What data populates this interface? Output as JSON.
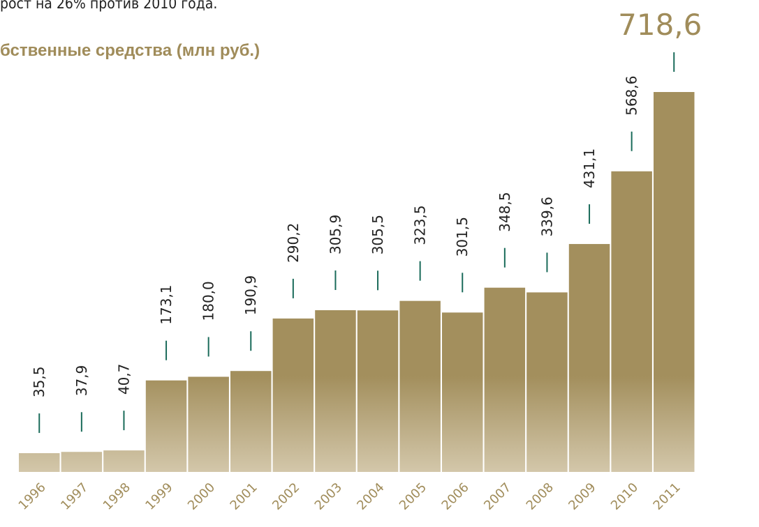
{
  "chart_data": {
    "type": "bar",
    "subtitle": "рост на 26% против 2010 года.",
    "title": "бственные средства (млн руб.)",
    "categories": [
      "1996",
      "1997",
      "1998",
      "1999",
      "2000",
      "2001",
      "2002",
      "2003",
      "2004",
      "2005",
      "2006",
      "2007",
      "2008",
      "2009",
      "2010",
      "2011"
    ],
    "values": [
      35.5,
      37.9,
      40.7,
      173.1,
      180.0,
      190.9,
      290.2,
      305.9,
      305.5,
      323.5,
      301.5,
      348.5,
      339.6,
      431.1,
      568.6,
      718.6
    ],
    "value_labels": [
      "35,5",
      "37,9",
      "40,7",
      "173,1",
      "180,0",
      "190,9",
      "290,2",
      "305,9",
      "305,5",
      "323,5",
      "301,5",
      "348,5",
      "339,6",
      "431,1",
      "568,6",
      "718,6"
    ],
    "color": "#a38f5d",
    "marker_color": "#1a6b5a"
  }
}
